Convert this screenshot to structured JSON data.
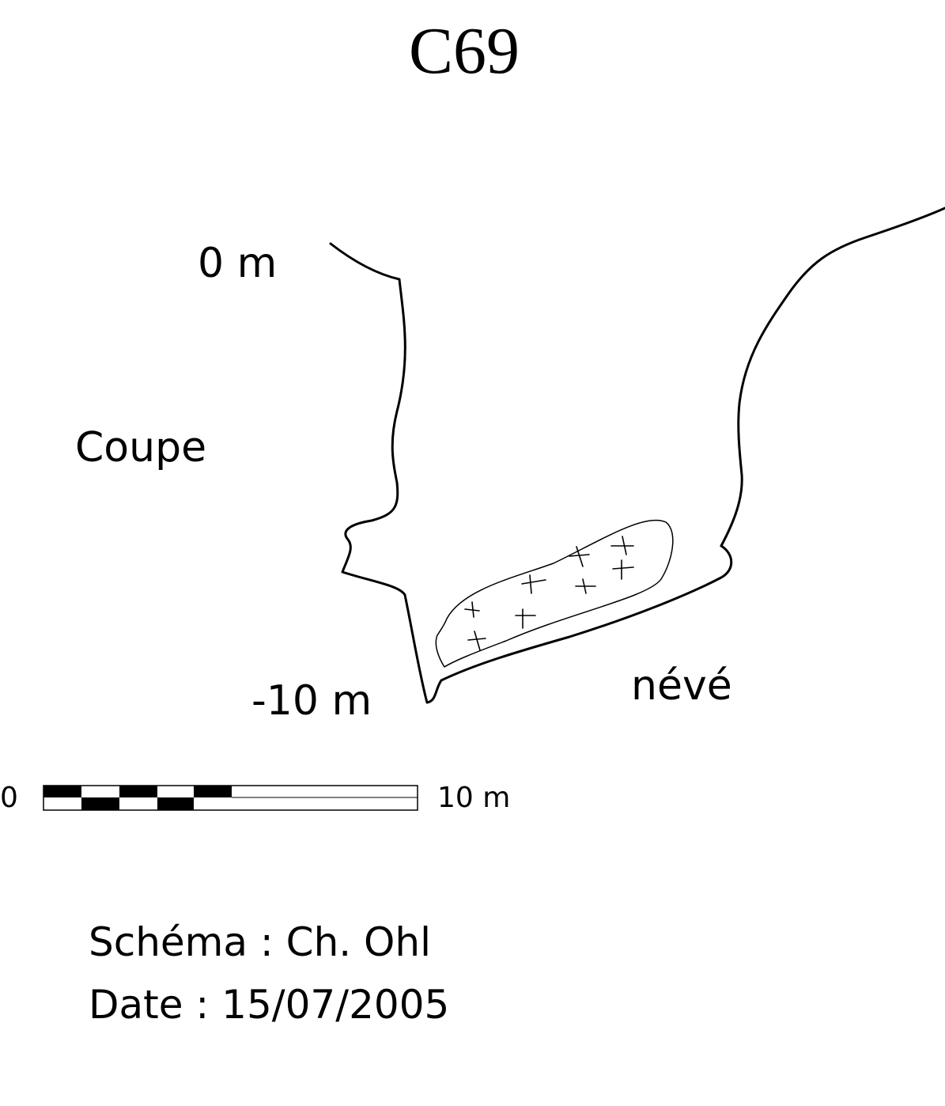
{
  "title": "C69",
  "section": {
    "label": "Coupe",
    "top_depth_label": "0 m",
    "bottom_depth_label": "-10 m",
    "neve_label": "névé"
  },
  "scale_bar": {
    "start_label": "0",
    "end_label": "10 m"
  },
  "credits": {
    "author": "Schéma : Ch. Ohl",
    "date": "Date : 15/07/2005"
  },
  "colors": {
    "ink": "#000000",
    "background": "#ffffff"
  }
}
